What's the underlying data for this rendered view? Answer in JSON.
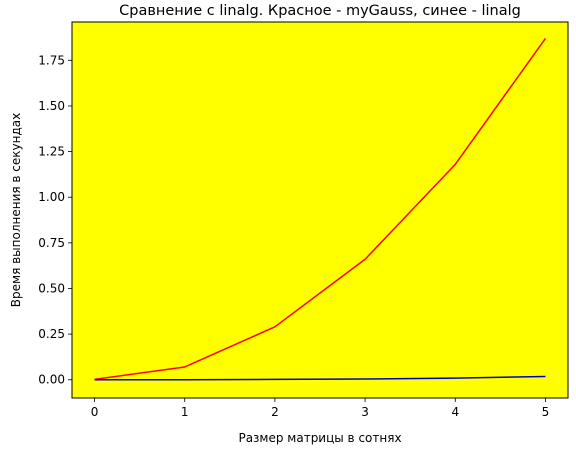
{
  "chart_data": {
    "type": "line",
    "title": "Сравнение с linalg. Красное - myGauss, синее - linalg",
    "xlabel": "Размер матрицы в сотнях",
    "ylabel": "Время выполнения в секундах",
    "x": [
      0,
      1,
      2,
      3,
      4,
      5
    ],
    "xlim": [
      -0.25,
      5.25
    ],
    "ylim": [
      -0.1,
      1.96
    ],
    "xticks": [
      0,
      1,
      2,
      3,
      4,
      5
    ],
    "xtick_labels": [
      "0",
      "1",
      "2",
      "3",
      "4",
      "5"
    ],
    "yticks": [
      0.0,
      0.25,
      0.5,
      0.75,
      1.0,
      1.25,
      1.5,
      1.75
    ],
    "ytick_labels": [
      "0.00",
      "0.25",
      "0.50",
      "0.75",
      "1.00",
      "1.25",
      "1.50",
      "1.75"
    ],
    "grid": false,
    "background_color": "#ffff00",
    "series": [
      {
        "color": "#ff0000",
        "values": [
          0.002,
          0.07,
          0.29,
          0.66,
          1.18,
          1.87
        ]
      },
      {
        "color": "#0000cc",
        "values": [
          0.0,
          0.0,
          0.002,
          0.004,
          0.009,
          0.018
        ]
      }
    ]
  }
}
